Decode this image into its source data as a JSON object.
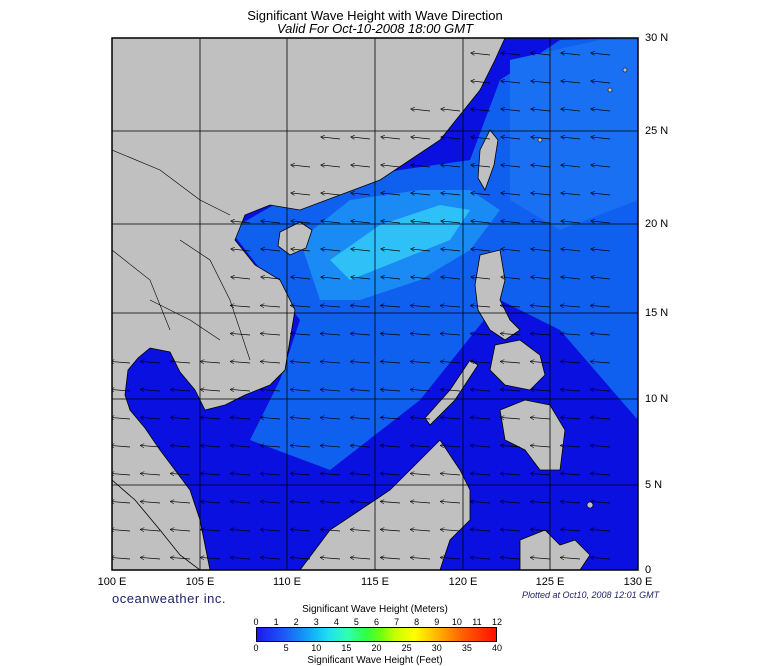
{
  "title": "Significant Wave Height with Wave Direction",
  "subtitle": "Valid For Oct-10-2008 18:00 GMT",
  "lon_ticks": [
    "100 E",
    "105 E",
    "110 E",
    "115 E",
    "120 E",
    "125 E",
    "130 E"
  ],
  "lat_ticks": [
    "30 N",
    "25 N",
    "20 N",
    "15 N",
    "10 N",
    "5 N",
    "0"
  ],
  "brand": "oceanweather inc.",
  "plotted": "Plotted at Oct10, 2008 12:01 GMT",
  "legend": {
    "meters_title": "Significant Wave Height (Meters)",
    "feet_title": "Significant Wave Height (Feet)",
    "meters_ticks": [
      "0",
      "1",
      "2",
      "3",
      "4",
      "5",
      "6",
      "7",
      "8",
      "9",
      "10",
      "11",
      "12"
    ],
    "feet_ticks": [
      "0",
      "5",
      "10",
      "15",
      "20",
      "25",
      "30",
      "35",
      "40"
    ]
  },
  "colors": {
    "land": "#c0c0c0",
    "sea_low": "#0a10d8",
    "sea_mid": "#1060f0",
    "sea_high": "#20b0f8",
    "grid": "#000000"
  }
}
